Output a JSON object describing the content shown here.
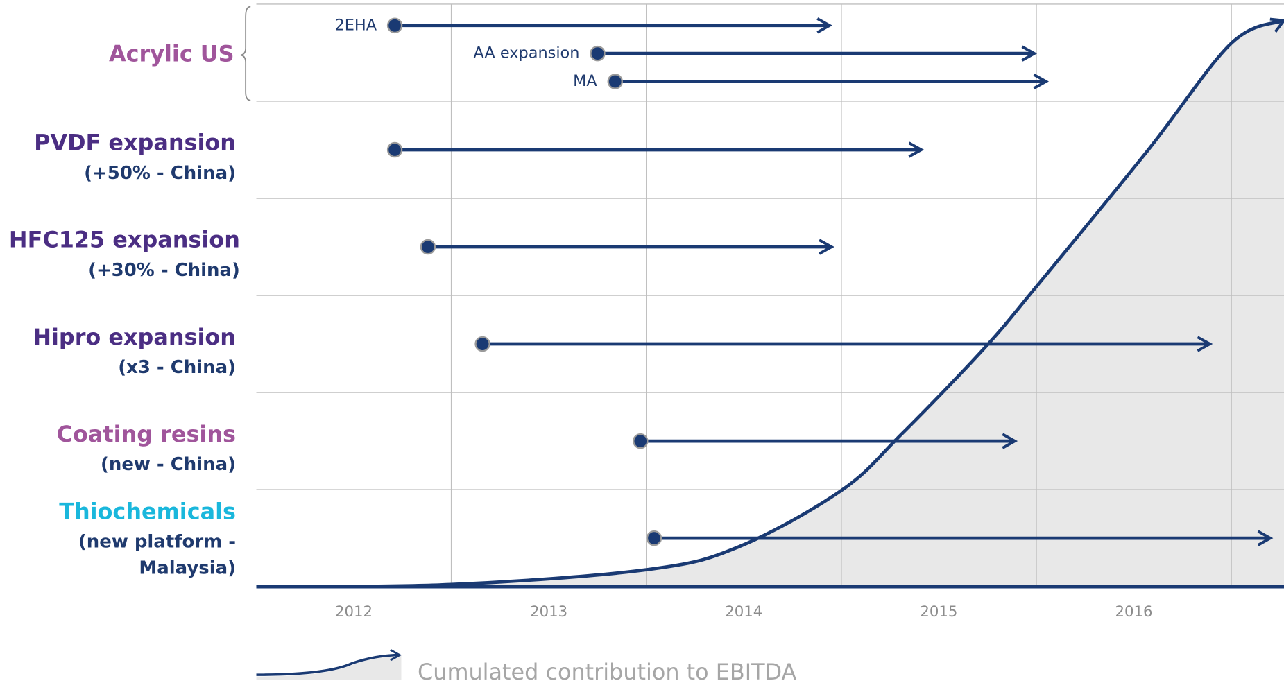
{
  "chart_data": {
    "type": "timeline",
    "xlim": [
      2012,
      2017.27
    ],
    "xticks": [
      2013,
      2014,
      2015,
      2016,
      2017
    ],
    "categories": [
      "2012",
      "2013",
      "2014",
      "2015",
      "2016"
    ],
    "ylim": [
      0,
      100
    ],
    "task_color": "#1a3a73",
    "groups": [
      {
        "label": "Acrylic US",
        "color": "#a0559b",
        "tasks": [
          {
            "name": "2EHA",
            "start": 2012.71,
            "end": 2014.94
          },
          {
            "name": "AA expansion",
            "start": 2013.75,
            "end": 2015.99
          },
          {
            "name": "MA",
            "start": 2013.84,
            "end": 2016.05
          }
        ]
      },
      {
        "label": "PVDF expansion",
        "sublabel": [
          "(+50%  -  China)"
        ],
        "color": "#4b2e83",
        "tasks": [
          {
            "start": 2012.71,
            "end": 2015.41
          }
        ]
      },
      {
        "label": "HFC125 expansion",
        "sublabel": [
          "(+30%  -  China)"
        ],
        "color": "#4b2e83",
        "tasks": [
          {
            "start": 2012.88,
            "end": 2014.95
          }
        ]
      },
      {
        "label": "Hipro expansion",
        "sublabel": [
          "(x3  -  China)"
        ],
        "color": "#4b2e83",
        "tasks": [
          {
            "start": 2013.16,
            "end": 2016.89
          }
        ]
      },
      {
        "label": "Coating resins",
        "sublabel": [
          "(new  -  China)"
        ],
        "color": "#a0559b",
        "tasks": [
          {
            "start": 2013.97,
            "end": 2015.89
          }
        ]
      },
      {
        "label": "Thiochemicals",
        "sublabel": [
          "(new platform  -",
          "Malaysia)"
        ],
        "color": "#1ab7dc",
        "tasks": [
          {
            "start": 2014.04,
            "end": 2017.2
          }
        ]
      }
    ],
    "series": [
      {
        "name": "Cumulated contribution to EBITDA",
        "color": "#1a3a73",
        "x": [
          2012,
          2013,
          2014,
          2014.47,
          2015,
          2015.31,
          2015.73,
          2016,
          2016.57,
          2017,
          2017.27
        ],
        "values": [
          0,
          0.4,
          3,
          7,
          17,
          27,
          42,
          53,
          77,
          96,
          100
        ]
      }
    ]
  }
}
